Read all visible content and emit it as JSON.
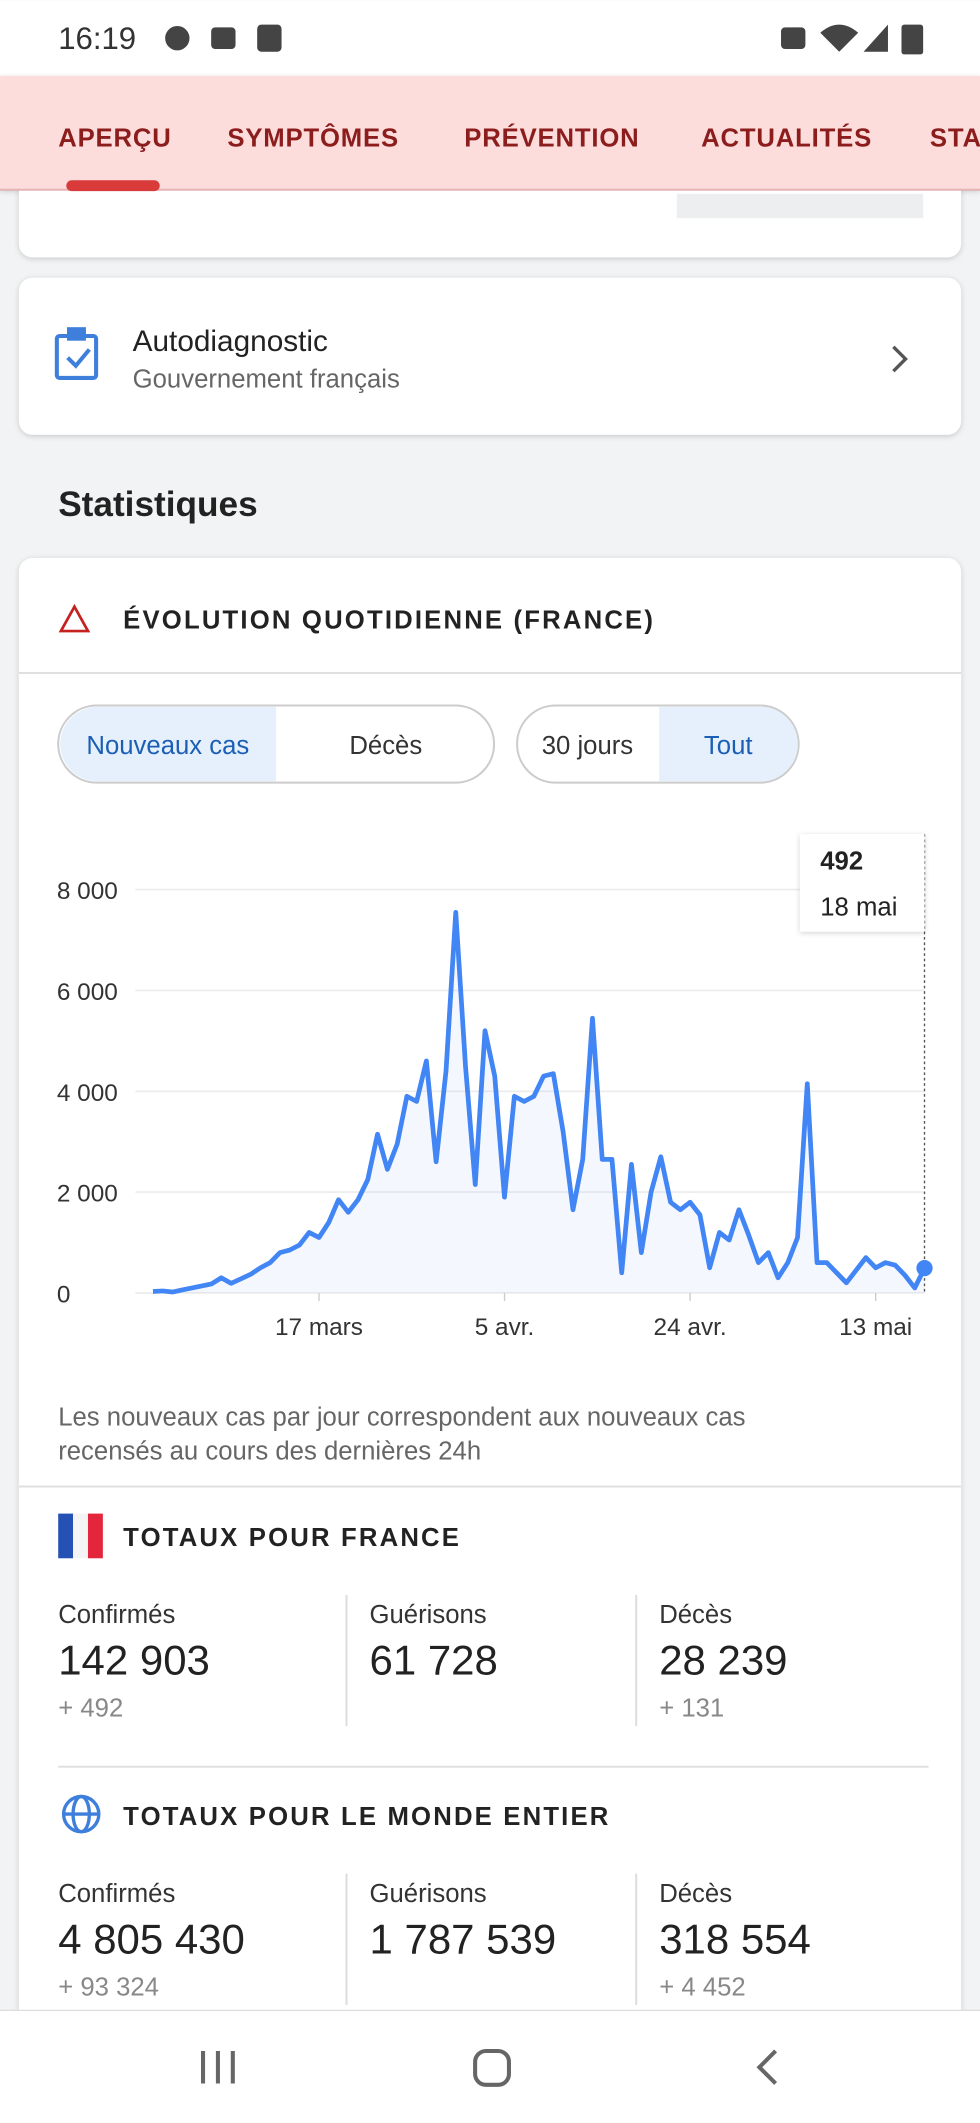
{
  "status_bar": {
    "time": "16:19"
  },
  "tabs": [
    "APERÇU",
    "SYMPTÔMES",
    "PRÉVENTION",
    "ACTUALITÉS",
    "STATISTIQUES"
  ],
  "card": {
    "title": "Autodiagnostic",
    "subtitle": "Gouvernement français"
  },
  "section_title": "Statistiques",
  "chart_card": {
    "title": "ÉVOLUTION QUOTIDIENNE (FRANCE)",
    "metric_toggle": [
      "Nouveaux cas",
      "Décès"
    ],
    "range_toggle": [
      "30 jours",
      "Tout"
    ],
    "note": [
      "Les nouveaux cas par jour correspondent aux nouveaux cas",
      "recensés au cours des dernières 24h"
    ]
  },
  "chart_data": {
    "type": "line",
    "categories": [
      null,
      null,
      null,
      null,
      null,
      null,
      null,
      null,
      null,
      null,
      null,
      null,
      null,
      null,
      null,
      null,
      null,
      "17 mars",
      null,
      null,
      null,
      null,
      null,
      null,
      null,
      null,
      null,
      null,
      null,
      null,
      null,
      null,
      null,
      null,
      null,
      null,
      "5 avr.",
      null,
      null,
      null,
      null,
      null,
      null,
      null,
      null,
      null,
      null,
      null,
      null,
      null,
      null,
      null,
      null,
      null,
      null,
      "24 avr.",
      null,
      null,
      null,
      null,
      null,
      null,
      null,
      null,
      null,
      null,
      null,
      null,
      null,
      null,
      null,
      null,
      null,
      null,
      "13 mai",
      null,
      null,
      null,
      null,
      null
    ],
    "series": [
      {
        "name": "Nouveaux cas",
        "color": "#4285f4",
        "values": [
          30,
          40,
          20,
          60,
          100,
          140,
          180,
          300,
          190,
          280,
          370,
          500,
          600,
          800,
          850,
          950,
          1200,
          1100,
          1400,
          1850,
          1600,
          1850,
          2250,
          3150,
          2450,
          2950,
          3900,
          3800,
          4600,
          2600,
          4400,
          7550,
          4500,
          2150,
          5200,
          4300,
          1900,
          3900,
          3800,
          3900,
          4300,
          4350,
          3200,
          1650,
          2650,
          5450,
          2650,
          2650,
          400,
          2550,
          800,
          2000,
          2700,
          1800,
          1650,
          1800,
          1550,
          500,
          1200,
          1050,
          1650,
          1150,
          600,
          800,
          300,
          600,
          1100,
          4150,
          600,
          600,
          400,
          200,
          450,
          700,
          500,
          600,
          550,
          350,
          100,
          492
        ]
      }
    ],
    "ylim": [
      0,
      8000
    ],
    "yticks": [
      {
        "value": 0,
        "label": "0"
      },
      {
        "value": 2000,
        "label": "2 000"
      },
      {
        "value": 4000,
        "label": "4 000"
      },
      {
        "value": 6000,
        "label": "6 000"
      },
      {
        "value": 8000,
        "label": "8 000"
      }
    ],
    "grid": true,
    "tooltip": {
      "value": 492,
      "date": "18 mai"
    }
  },
  "france": {
    "title": "TOTAUX POUR FRANCE",
    "stats": [
      {
        "label": "Confirmés",
        "value": "142 903",
        "change": "+ 492"
      },
      {
        "label": "Guérisons",
        "value": "61 728"
      },
      {
        "label": "Décès",
        "value": "28 239",
        "change": "+ 131"
      }
    ]
  },
  "world": {
    "title": "TOTAUX POUR LE MONDE ENTIER",
    "stats": [
      {
        "label": "Confirmés",
        "value": "4 805 430",
        "change": "+ 93 324"
      },
      {
        "label": "Guérisons",
        "value": "1 787 539"
      },
      {
        "label": "Décès",
        "value": "318 554",
        "change": "+ 4 452"
      }
    ]
  }
}
